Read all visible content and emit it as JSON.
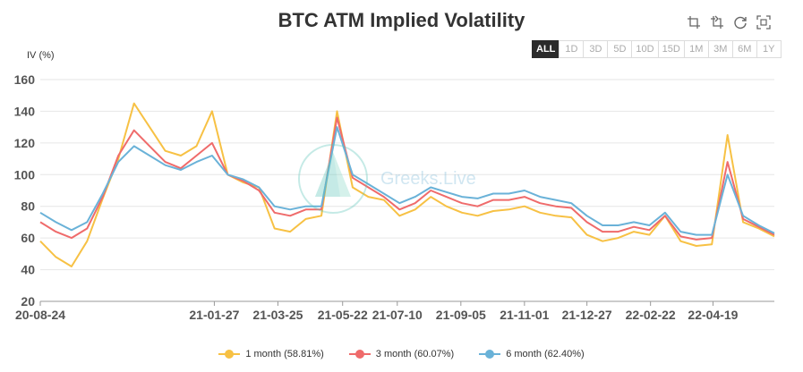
{
  "title": "BTC ATM Implied Volatility",
  "toolbox": [
    {
      "name": "zoom-icon"
    },
    {
      "name": "zoom-reset-icon"
    },
    {
      "name": "refresh-icon"
    },
    {
      "name": "save-image-icon"
    }
  ],
  "ranges": [
    "ALL",
    "1D",
    "3D",
    "5D",
    "10D",
    "15D",
    "1M",
    "3M",
    "6M",
    "1Y"
  ],
  "active_range": "ALL",
  "watermark": "Greeks.Live",
  "colors": {
    "1m": "#f7c144",
    "3m": "#ef6b6b",
    "6m": "#6ab2d8"
  },
  "chart_data": {
    "type": "line",
    "ylabel": "IV (%)",
    "ylim": [
      20,
      160
    ],
    "yticks": [
      20,
      40,
      60,
      80,
      100,
      120,
      140,
      160
    ],
    "xlim": [
      "20-08-24",
      "22-06-13"
    ],
    "xticks": [
      "20-08-24",
      "21-01-27",
      "21-03-25",
      "21-05-22",
      "21-07-10",
      "21-09-05",
      "21-11-01",
      "21-12-27",
      "22-02-22",
      "22-04-19"
    ],
    "x": [
      "20-08-24",
      "20-09-07",
      "20-09-21",
      "20-10-05",
      "20-10-19",
      "20-11-02",
      "20-11-16",
      "20-11-30",
      "20-12-14",
      "20-12-28",
      "21-01-11",
      "21-01-25",
      "21-02-08",
      "21-02-22",
      "21-03-08",
      "21-03-22",
      "21-04-05",
      "21-04-19",
      "21-05-03",
      "21-05-17",
      "21-05-31",
      "21-06-14",
      "21-06-28",
      "21-07-12",
      "21-07-26",
      "21-08-09",
      "21-08-23",
      "21-09-06",
      "21-09-20",
      "21-10-04",
      "21-10-18",
      "21-11-01",
      "21-11-15",
      "21-11-29",
      "21-12-13",
      "21-12-27",
      "22-01-10",
      "22-01-24",
      "22-02-07",
      "22-02-21",
      "22-03-07",
      "22-03-21",
      "22-04-04",
      "22-04-18",
      "22-05-02",
      "22-05-16",
      "22-05-30",
      "22-06-13"
    ],
    "series": [
      {
        "name": "1 month (58.81%)",
        "color": "#f7c144",
        "values": [
          58,
          48,
          42,
          58,
          85,
          110,
          145,
          130,
          115,
          112,
          118,
          140,
          100,
          95,
          92,
          66,
          64,
          72,
          74,
          140,
          92,
          86,
          84,
          74,
          78,
          86,
          80,
          76,
          74,
          77,
          78,
          80,
          76,
          74,
          73,
          62,
          58,
          60,
          64,
          62,
          74,
          58,
          55,
          56,
          125,
          70,
          66,
          61
        ]
      },
      {
        "name": "3 month (60.07%)",
        "color": "#ef6b6b",
        "values": [
          70,
          64,
          60,
          66,
          86,
          112,
          128,
          118,
          108,
          104,
          112,
          120,
          100,
          96,
          90,
          76,
          74,
          78,
          78,
          136,
          98,
          92,
          86,
          78,
          82,
          90,
          86,
          82,
          80,
          84,
          84,
          86,
          82,
          80,
          79,
          70,
          64,
          64,
          67,
          65,
          74,
          61,
          59,
          60,
          108,
          72,
          67,
          62
        ]
      },
      {
        "name": "6 month (62.40%)",
        "color": "#6ab2d8",
        "values": [
          76,
          70,
          65,
          70,
          88,
          108,
          118,
          112,
          106,
          103,
          108,
          112,
          100,
          97,
          92,
          80,
          78,
          80,
          80,
          130,
          100,
          94,
          88,
          82,
          86,
          92,
          89,
          86,
          85,
          88,
          88,
          90,
          86,
          84,
          82,
          74,
          68,
          68,
          70,
          68,
          76,
          64,
          62,
          62,
          100,
          74,
          68,
          63
        ]
      }
    ],
    "grid": true,
    "legend": "bottom-center"
  }
}
